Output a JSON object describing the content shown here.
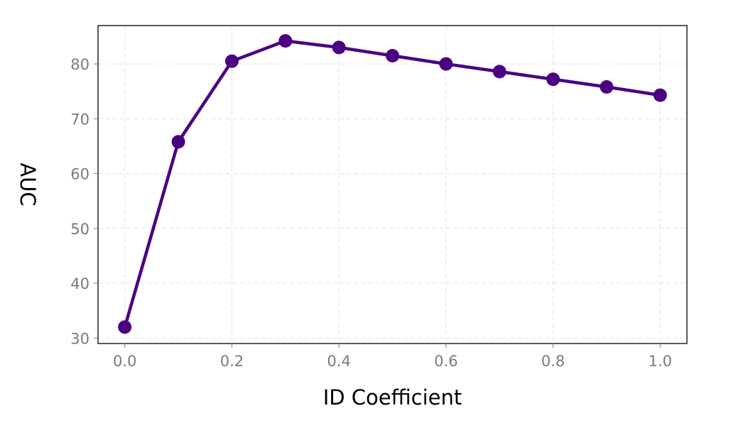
{
  "chart_data": {
    "type": "line",
    "title": "",
    "xlabel": "ID Coefficient",
    "ylabel": "AUC",
    "x": [
      0.0,
      0.1,
      0.2,
      0.3,
      0.4,
      0.5,
      0.6,
      0.7,
      0.8,
      0.9,
      1.0
    ],
    "series": [
      {
        "values": [
          32.0,
          65.8,
          80.5,
          84.2,
          83.0,
          81.5,
          80.0,
          78.6,
          77.2,
          75.8,
          74.3
        ],
        "color": "#4b0082"
      }
    ],
    "xlim": [
      -0.05,
      1.05
    ],
    "ylim": [
      29,
      87
    ],
    "xticks": [
      0.0,
      0.2,
      0.4,
      0.6,
      0.8,
      1.0
    ],
    "xtick_labels": [
      "0.0",
      "0.2",
      "0.4",
      "0.6",
      "0.8",
      "1.0"
    ],
    "yticks": [
      30,
      40,
      50,
      60,
      70,
      80
    ],
    "ytick_labels": [
      "30",
      "40",
      "50",
      "60",
      "70",
      "80"
    ],
    "grid": true,
    "legend": "none"
  }
}
